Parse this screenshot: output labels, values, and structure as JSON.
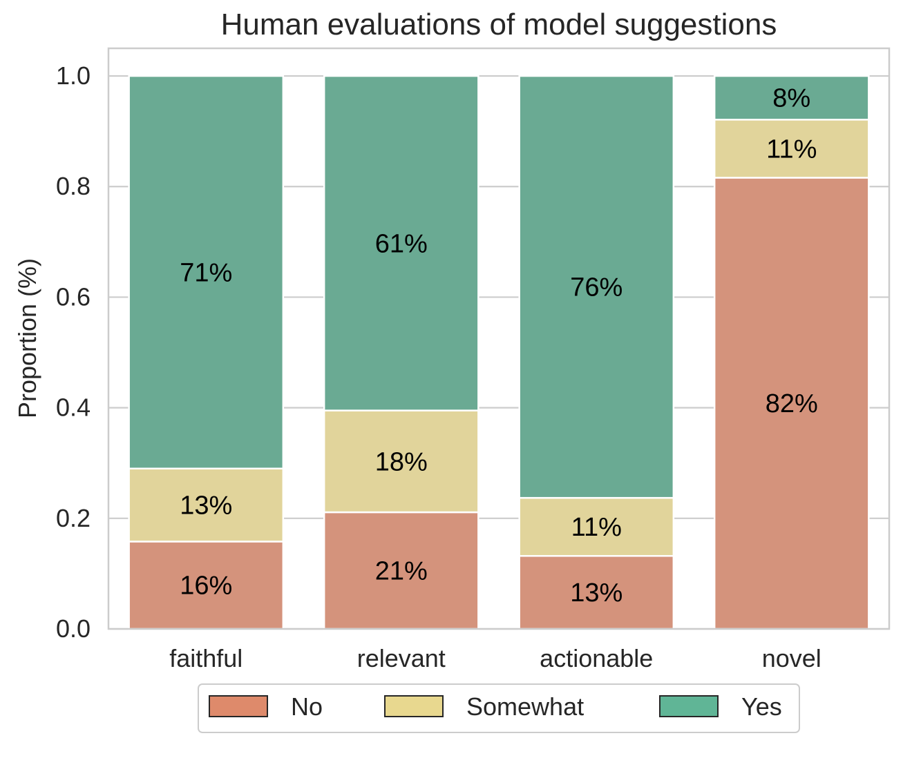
{
  "chart_data": {
    "type": "bar",
    "stacked": true,
    "title": "Human evaluations of model suggestions",
    "xlabel": "",
    "ylabel": "Proportion (%)",
    "ylim": [
      0,
      1.05
    ],
    "yticks": [
      "0.0",
      "0.2",
      "0.4",
      "0.6",
      "0.8",
      "1.0"
    ],
    "grid": true,
    "legend_position": "bottom-center",
    "categories": [
      "faithful",
      "relevant",
      "actionable",
      "novel"
    ],
    "series": [
      {
        "name": "No",
        "color": "#d4937c",
        "legend_color": "#de8a6b",
        "values": [
          0.158,
          0.211,
          0.132,
          0.816
        ],
        "labels": [
          "16%",
          "21%",
          "13%",
          "82%"
        ]
      },
      {
        "name": "Somewhat",
        "color": "#e1d49b",
        "legend_color": "#e8d88f",
        "values": [
          0.132,
          0.184,
          0.105,
          0.105
        ],
        "labels": [
          "13%",
          "18%",
          "11%",
          "11%"
        ]
      },
      {
        "name": "Yes",
        "color": "#6aaa93",
        "legend_color": "#60b596",
        "values": [
          0.71,
          0.605,
          0.763,
          0.079
        ],
        "labels": [
          "71%",
          "61%",
          "76%",
          "8%"
        ]
      }
    ]
  }
}
